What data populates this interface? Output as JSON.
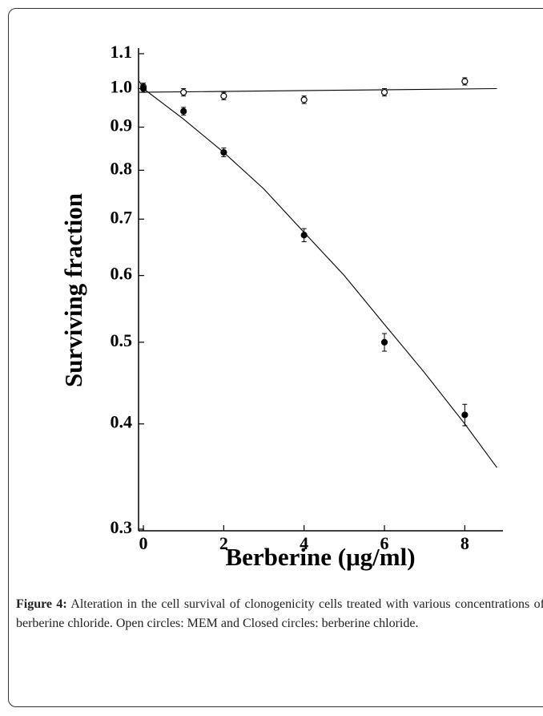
{
  "chart_data": {
    "type": "scatter",
    "xlabel": "Berberine (μg/ml)",
    "ylabel": "Surviving fraction",
    "xlim": [
      -0.12,
      8.95
    ],
    "xticks": [
      0,
      2,
      4,
      6,
      8
    ],
    "ylim": [
      0.3,
      1.1
    ],
    "yticks": [
      {
        "value": 0.3,
        "label": "0.3"
      },
      0.4,
      0.5,
      0.6,
      0.7,
      0.8,
      0.9,
      {
        "value": 1.0,
        "label": "1.0"
      },
      1.1
    ],
    "log_y": true,
    "series": [
      {
        "marker": "open",
        "color": "#000",
        "x": [
          0,
          1,
          2,
          4,
          6,
          8
        ],
        "values": [
          1.005,
          0.99,
          0.98,
          0.97,
          0.99,
          1.02
        ],
        "errors": [
          0.01,
          0.01,
          0.01,
          0.01,
          0.01,
          0.01
        ],
        "fit_x": [
          -0.1,
          8.8
        ],
        "fit_values": [
          0.99,
          1.0
        ]
      },
      {
        "marker": "closed",
        "color": "#000",
        "x": [
          0,
          1,
          2,
          4,
          6,
          8
        ],
        "values": [
          1.0,
          0.94,
          0.84,
          0.67,
          0.5,
          0.41
        ],
        "errors": [
          0.01,
          0.01,
          0.01,
          0.012,
          0.012,
          0.012
        ],
        "fit_x": [
          -0.1,
          0,
          1,
          2,
          3,
          4,
          5,
          6,
          7,
          8,
          8.8
        ],
        "fit_values": [
          1.02,
          1.0,
          0.92,
          0.84,
          0.76,
          0.675,
          0.6,
          0.525,
          0.46,
          0.4,
          0.355
        ]
      }
    ]
  },
  "caption": {
    "label": "Figure 4:",
    "text": " Alteration in the cell survival of clonogenicity cells treated with various concentrations of berberine chloride. Open circles: MEM and Closed circles: berberine chloride."
  }
}
